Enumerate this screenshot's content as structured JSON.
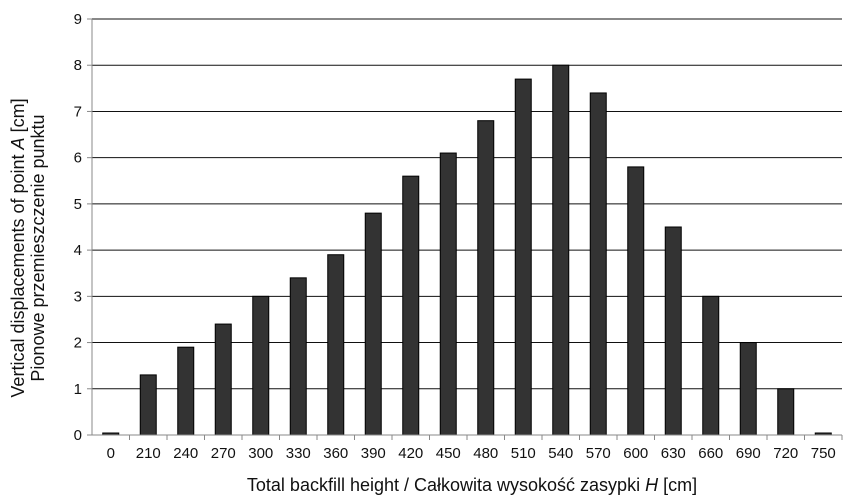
{
  "chart_data": {
    "type": "bar",
    "title": "",
    "xlabel_prefix": "Total backfill height / Całkowita wysokość zasypki ",
    "xlabel_var": "H",
    "xlabel_suffix": " [cm]",
    "ylabel_line1_prefix": "Vertical displacements of point ",
    "ylabel_line1_var": "A",
    "ylabel_line1_suffix": " [cm]",
    "ylabel_line2": "Pionowe przemieszczenie punktu",
    "categories": [
      "0",
      "210",
      "240",
      "270",
      "300",
      "330",
      "360",
      "390",
      "420",
      "450",
      "480",
      "510",
      "540",
      "570",
      "600",
      "630",
      "660",
      "690",
      "720",
      "750"
    ],
    "values": [
      0,
      1.3,
      1.9,
      2.4,
      3.0,
      3.4,
      3.9,
      4.8,
      5.6,
      6.1,
      6.8,
      7.7,
      8.0,
      7.4,
      5.8,
      4.5,
      3.0,
      2.0,
      1.0,
      0
    ],
    "yticks": [
      "0",
      "1",
      "2",
      "3",
      "4",
      "5",
      "6",
      "7",
      "8",
      "9"
    ],
    "ylim": [
      0,
      9
    ],
    "grid": true,
    "legend": "none",
    "bar_color": "#333333"
  }
}
